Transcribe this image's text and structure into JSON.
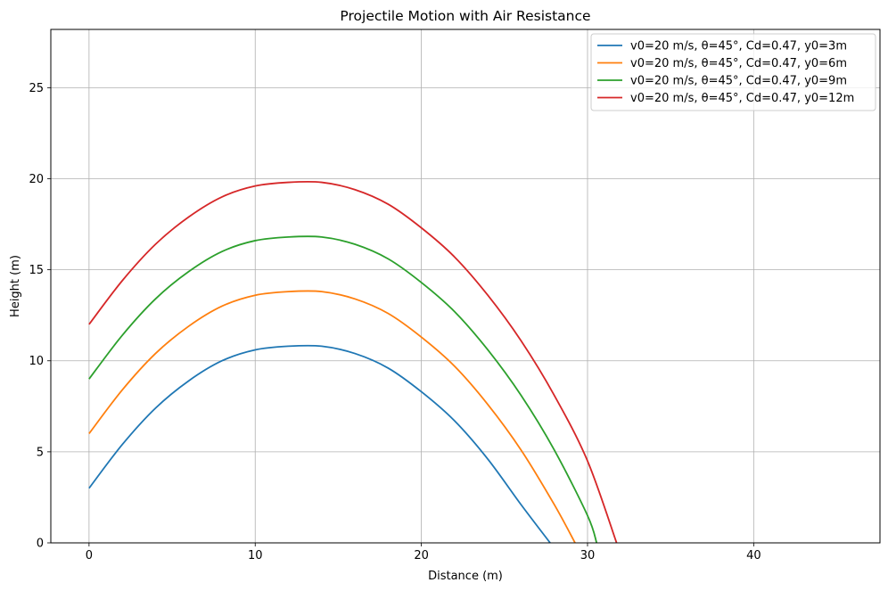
{
  "chart_data": {
    "type": "line",
    "title": "Projectile Motion with Air Resistance",
    "xlabel": "Distance (m)",
    "ylabel": "Height (m)",
    "xlim": [
      -2.3,
      47.6
    ],
    "ylim": [
      0,
      28.2
    ],
    "xticks": [
      0,
      10,
      20,
      30,
      40
    ],
    "yticks": [
      0,
      5,
      10,
      15,
      20,
      25
    ],
    "grid": true,
    "legend_position": "top-right",
    "series": [
      {
        "name": "v0=20 m/s, θ=45°, Cd=0.47, y0=3m",
        "color": "#1f77b4",
        "x": [
          0,
          2,
          4,
          6,
          8,
          10,
          12,
          14,
          16,
          18,
          20,
          22,
          24,
          26,
          27.75
        ],
        "y": [
          3.0,
          5.4,
          7.4,
          8.9,
          10.0,
          10.6,
          10.8,
          10.8,
          10.4,
          9.6,
          8.3,
          6.7,
          4.6,
          2.1,
          0.0
        ]
      },
      {
        "name": "v0=20 m/s, θ=45°, Cd=0.47, y0=6m",
        "color": "#ff7f0e",
        "x": [
          0,
          2,
          4,
          6,
          8,
          10,
          12,
          14,
          16,
          18,
          20,
          22,
          24,
          26,
          28,
          29.25
        ],
        "y": [
          6.0,
          8.4,
          10.4,
          11.9,
          13.0,
          13.6,
          13.8,
          13.8,
          13.4,
          12.6,
          11.3,
          9.7,
          7.6,
          5.1,
          2.1,
          0.0
        ]
      },
      {
        "name": "v0=20 m/s, θ=45°, Cd=0.47, y0=9m",
        "color": "#2ca02c",
        "x": [
          0,
          2,
          4,
          6,
          8,
          10,
          12,
          14,
          16,
          18,
          20,
          22,
          24,
          26,
          28,
          30,
          30.55
        ],
        "y": [
          9.0,
          11.4,
          13.4,
          14.9,
          16.0,
          16.6,
          16.8,
          16.8,
          16.4,
          15.6,
          14.3,
          12.7,
          10.6,
          8.1,
          5.1,
          1.5,
          0.0
        ]
      },
      {
        "name": "v0=20 m/s, θ=45°, Cd=0.47, y0=12m",
        "color": "#d62728",
        "x": [
          0,
          2,
          4,
          6,
          8,
          10,
          12,
          14,
          16,
          18,
          20,
          22,
          24,
          26,
          28,
          30,
          31.75
        ],
        "y": [
          12.0,
          14.4,
          16.4,
          17.9,
          19.0,
          19.6,
          19.8,
          19.8,
          19.4,
          18.6,
          17.3,
          15.7,
          13.6,
          11.1,
          8.1,
          4.5,
          0.0
        ]
      }
    ]
  }
}
